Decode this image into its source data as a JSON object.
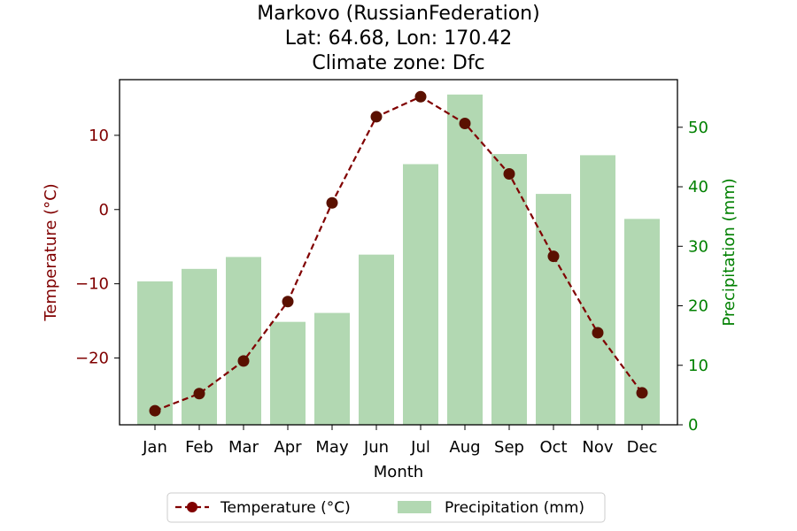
{
  "chart_data": {
    "type": "bar+line",
    "title_lines": [
      "Markovo (RussianFederation)",
      "Lat: 64.68, Lon: 170.42",
      "Climate zone: Dfc"
    ],
    "xlabel": "Month",
    "ylabel_left": "Temperature (°C)",
    "ylabel_right": "Precipitation (mm)",
    "categories": [
      "Jan",
      "Feb",
      "Mar",
      "Apr",
      "May",
      "Jun",
      "Jul",
      "Aug",
      "Sep",
      "Oct",
      "Nov",
      "Dec"
    ],
    "temperature": {
      "name": "Temperature (°C)",
      "values": [
        -27.1,
        -24.8,
        -20.4,
        -12.4,
        0.9,
        12.5,
        15.2,
        11.6,
        4.8,
        -6.3,
        -16.6,
        -24.7
      ],
      "color": "#800000",
      "marker_color": "#5a1000"
    },
    "precipitation": {
      "name": "Precipitation (mm)",
      "values": [
        24.1,
        26.2,
        28.2,
        17.3,
        18.8,
        28.6,
        43.8,
        55.5,
        45.5,
        38.8,
        45.3,
        34.6
      ],
      "color": "#b2d8b2"
    },
    "ylim_left": [
      -29.0,
      17.5
    ],
    "ylim_right": [
      0,
      58.0
    ],
    "yticks_left": [
      -20,
      -10,
      0,
      10
    ],
    "yticks_left_labels": [
      "−20",
      "−10",
      "0",
      "10"
    ],
    "yticks_right": [
      0,
      10,
      20,
      30,
      40,
      50
    ],
    "left_axis_color": "#800000",
    "right_axis_color": "#008000",
    "legend_position": "bottom-center",
    "grid": false
  }
}
